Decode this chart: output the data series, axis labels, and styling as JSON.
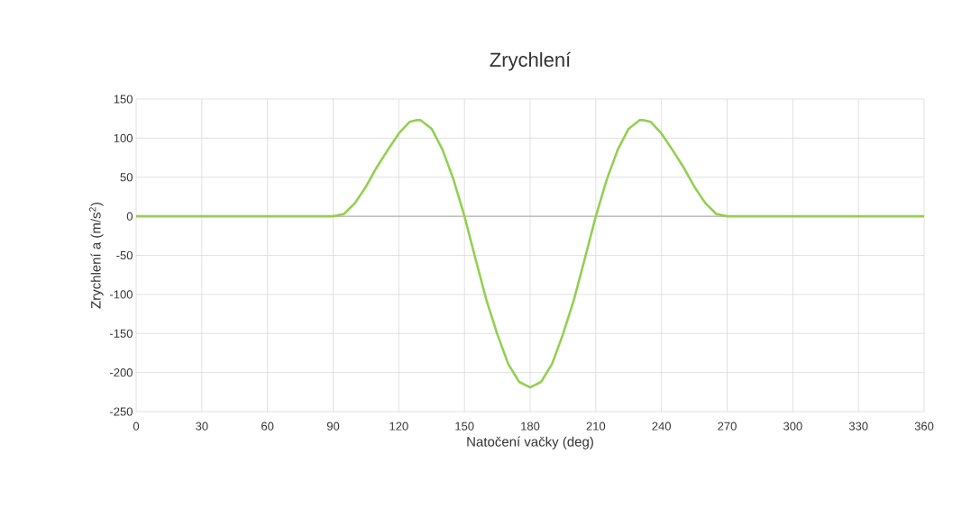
{
  "chart_data": {
    "type": "line",
    "title": "Zrychlení",
    "xlabel": "Natočení vačky (deg)",
    "ylabel": "Zrychlení a (m/s$^{2}$)",
    "x": [
      0,
      90,
      95,
      100,
      105,
      110,
      115,
      120,
      125,
      128,
      130,
      135,
      140,
      145,
      150,
      155,
      160,
      165,
      170,
      175,
      180,
      185,
      190,
      195,
      200,
      205,
      210,
      215,
      220,
      225,
      230,
      232,
      235,
      240,
      245,
      250,
      255,
      260,
      265,
      270,
      360
    ],
    "series": [
      {
        "color": "#92d050",
        "values": [
          0,
          0,
          3,
          17,
          38,
          63,
          85,
          106,
          121,
          123,
          123,
          112,
          85,
          47,
          0,
          -54,
          -107,
          -151,
          -189,
          -212,
          -219,
          -212,
          -189,
          -151,
          -107,
          -54,
          0,
          47,
          85,
          112,
          123,
          123,
          121,
          106,
          85,
          63,
          38,
          17,
          3,
          0,
          0
        ]
      }
    ],
    "xlim": [
      0,
      360
    ],
    "ylim": [
      -250,
      150
    ],
    "xticks": [
      0,
      30,
      60,
      90,
      120,
      150,
      180,
      210,
      240,
      270,
      300,
      330,
      360
    ],
    "yticks": [
      -250,
      -200,
      -150,
      -100,
      -50,
      0,
      50,
      100,
      150
    ],
    "grid": true,
    "marker": "none",
    "line_style": "solid"
  }
}
